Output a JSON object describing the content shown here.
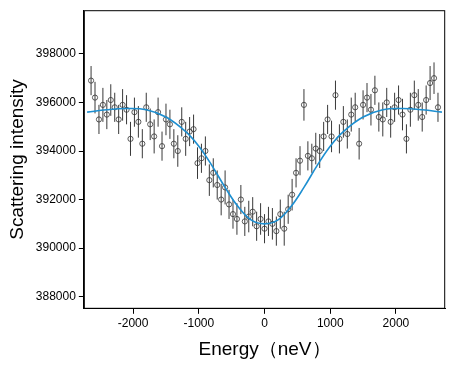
{
  "chart_data": {
    "type": "scatter",
    "x_label": "Energy（neV）",
    "y_label": "Scattering intensity",
    "xlim": [
      -2750,
      2750
    ],
    "xticks": [
      -2000,
      -1000,
      0,
      1000,
      2000
    ],
    "ylim": [
      387500,
      399800
    ],
    "yticks": [
      388000,
      390000,
      392000,
      394000,
      396000,
      398000
    ],
    "grid": false,
    "series": [
      {
        "type": "scatter",
        "color": "#333333",
        "marker": "open_circle",
        "x": [
          -2640,
          -2580,
          -2520,
          -2460,
          -2400,
          -2340,
          -2280,
          -2220,
          -2160,
          -2100,
          -2040,
          -1980,
          -1920,
          -1860,
          -1800,
          -1740,
          -1680,
          -1620,
          -1560,
          -1500,
          -1440,
          -1380,
          -1320,
          -1260,
          -1200,
          -1140,
          -1080,
          -1020,
          -960,
          -900,
          -840,
          -780,
          -720,
          -660,
          -600,
          -540,
          -480,
          -420,
          -360,
          -300,
          -240,
          -180,
          -120,
          -60,
          0,
          60,
          120,
          180,
          240,
          300,
          360,
          420,
          480,
          540,
          600,
          660,
          720,
          780,
          840,
          900,
          960,
          1020,
          1080,
          1140,
          1200,
          1260,
          1320,
          1380,
          1440,
          1500,
          1560,
          1620,
          1680,
          1740,
          1800,
          1860,
          1920,
          1980,
          2040,
          2100,
          2160,
          2220,
          2280,
          2340,
          2400,
          2460,
          2520,
          2580,
          2640
        ],
        "values": [
          396900,
          396200,
          395300,
          395900,
          395500,
          396100,
          395800,
          395300,
          395900,
          395700,
          394500,
          395600,
          395200,
          394300,
          395800,
          395100,
          394600,
          395600,
          394200,
          395300,
          395100,
          394300,
          394000,
          395200,
          394500,
          394800,
          394900,
          393500,
          393700,
          394000,
          392800,
          393100,
          392600,
          392000,
          392500,
          391800,
          391400,
          391200,
          392000,
          391100,
          391300,
          391500,
          390900,
          391200,
          390800,
          391100,
          391000,
          390700,
          391400,
          390800,
          391600,
          392200,
          393100,
          393600,
          395900,
          393800,
          393700,
          394100,
          394000,
          394600,
          395300,
          394600,
          396300,
          394500,
          395200,
          394700,
          395500,
          395800,
          394300,
          395900,
          396200,
          395700,
          396500,
          395400,
          395300,
          396000,
          395200,
          395800,
          396100,
          395500,
          394500,
          395700,
          396300,
          395900,
          395400,
          396100,
          396800,
          397000,
          395800
        ],
        "errors": [
          600,
          650,
          600,
          700,
          600,
          650,
          600,
          600,
          650,
          600,
          700,
          600,
          650,
          600,
          600,
          650,
          700,
          600,
          600,
          650,
          600,
          600,
          650,
          600,
          700,
          600,
          600,
          650,
          600,
          600,
          650,
          600,
          600,
          650,
          700,
          600,
          600,
          650,
          600,
          600,
          650,
          600,
          600,
          650,
          600,
          600,
          650,
          600,
          600,
          700,
          600,
          650,
          600,
          600,
          650,
          600,
          600,
          650,
          700,
          600,
          600,
          650,
          600,
          600,
          650,
          600,
          700,
          600,
          650,
          600,
          600,
          650,
          600,
          600,
          700,
          600,
          650,
          600,
          600,
          650,
          600,
          700,
          600,
          650,
          600,
          600,
          700,
          650,
          600
        ]
      },
      {
        "type": "line",
        "color": "#1e8fd0",
        "line_style": "solid",
        "x": [
          -2700,
          -2400,
          -2100,
          -1800,
          -1500,
          -1200,
          -1000,
          -800,
          -600,
          -400,
          -200,
          0,
          200,
          400,
          600,
          800,
          1000,
          1200,
          1500,
          1800,
          2100,
          2400,
          2700
        ],
        "values": [
          395600,
          395700,
          395750,
          395700,
          395400,
          394800,
          394200,
          393400,
          392500,
          391700,
          391150,
          391000,
          391150,
          391700,
          392500,
          393400,
          394200,
          394800,
          395400,
          395700,
          395750,
          395700,
          395600
        ]
      }
    ]
  }
}
